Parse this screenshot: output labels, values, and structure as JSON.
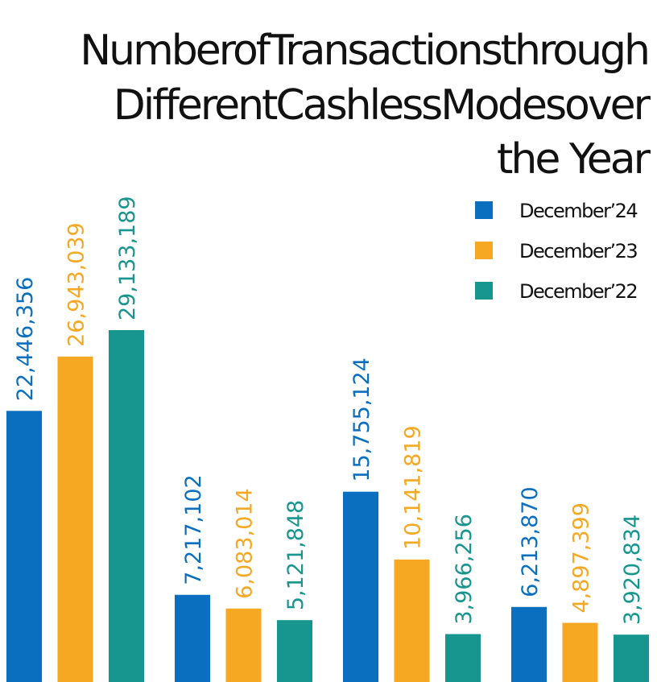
{
  "chart_data": {
    "type": "bar",
    "title": [
      "NumberofTransactionsthrough",
      "DifferentCashlessModesover",
      "the Year"
    ],
    "categories": [
      null,
      null,
      null,
      null
    ],
    "series": [
      {
        "name": "December’24",
        "color": "#0b6fbf",
        "values": [
          22446356,
          7217102,
          15755124,
          6213870
        ],
        "value_labels": [
          "22,446,356",
          "7,217,102",
          "15,755,124",
          "6,213,870"
        ]
      },
      {
        "name": "December’23",
        "color": "#f7a823",
        "values": [
          26943039,
          6083014,
          10141819,
          4897399
        ],
        "value_labels": [
          "26,943,039",
          "6,083,014",
          "10,141,819",
          "4,897,399"
        ]
      },
      {
        "name": "December’22",
        "color": "#17958f",
        "values": [
          29133189,
          5121848,
          3966256,
          3920834
        ],
        "value_labels": [
          "29,133,189",
          "5,121,848",
          "3,966,256",
          "3,920,834"
        ]
      }
    ],
    "legend": "top-right"
  }
}
